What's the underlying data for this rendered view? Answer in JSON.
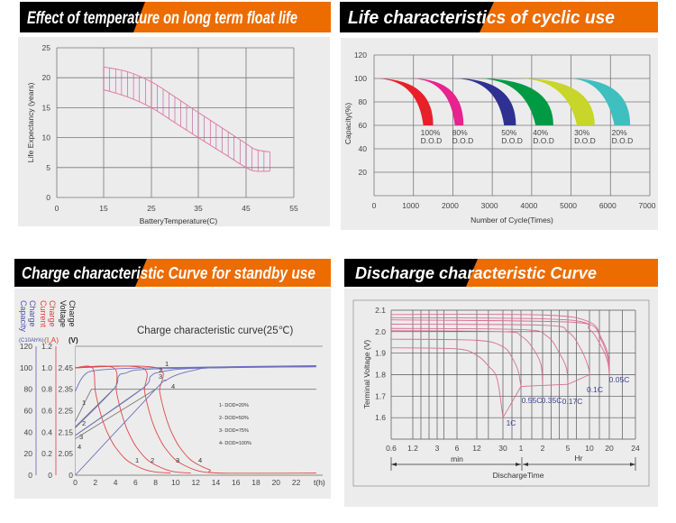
{
  "chart_data": [
    {
      "type": "area",
      "title": "Effect of temperature on long term float life",
      "xlabel": "BatteryTemperature(C)",
      "ylabel": "Life Expectancy (years)",
      "x_ticks": [
        0,
        15,
        25,
        35,
        45,
        55
      ],
      "y_ticks": [
        0,
        5,
        10,
        15,
        20,
        25
      ],
      "ylim": [
        0,
        25
      ],
      "grid": true,
      "color": "#e07ca0",
      "hatch_color": "#c0509a",
      "band": {
        "upper": [
          [
            15,
            21.8
          ],
          [
            20,
            21.0
          ],
          [
            25,
            19.3
          ],
          [
            30,
            16.8
          ],
          [
            35,
            14.2
          ],
          [
            40,
            11.6
          ],
          [
            45,
            9.0
          ],
          [
            47,
            8.0
          ],
          [
            50,
            7.6
          ]
        ],
        "lower": [
          [
            15,
            18.0
          ],
          [
            20,
            16.8
          ],
          [
            25,
            15.0
          ],
          [
            30,
            12.5
          ],
          [
            35,
            10.0
          ],
          [
            40,
            7.5
          ],
          [
            45,
            5.0
          ],
          [
            47,
            4.4
          ],
          [
            50,
            4.4
          ]
        ]
      }
    },
    {
      "type": "area",
      "title": "Life characteristics of cyclic use",
      "xlabel": "Number of Cycle(Times)",
      "ylabel": "Capacity(%)",
      "xlim": [
        0,
        7000
      ],
      "ylim": [
        0,
        120
      ],
      "x_ticks": [
        0,
        1000,
        2000,
        3000,
        4000,
        5000,
        6000,
        7000
      ],
      "y_ticks": [
        20,
        40,
        60,
        80,
        100,
        120
      ],
      "grid": true,
      "series": [
        {
          "name": "100% D.O.D",
          "label_top": "100%",
          "label_bottom": "D.O.D",
          "start": 0,
          "end_inner": 1250,
          "end_outer": 1500,
          "color": "#e8202a"
        },
        {
          "name": "80% D.O.D",
          "label_top": "80%",
          "label_bottom": "D.O.D",
          "start": 900,
          "end_inner": 2050,
          "end_outer": 2270,
          "color": "#e6238e"
        },
        {
          "name": "50% D.O.D",
          "label_top": "50%",
          "label_bottom": "D.O.D",
          "start": 2000,
          "end_inner": 3300,
          "end_outer": 3600,
          "color": "#2e3192"
        },
        {
          "name": "40% D.O.D",
          "label_top": "40%",
          "label_bottom": "D.O.D",
          "start": 2600,
          "end_inner": 4100,
          "end_outer": 4550,
          "color": "#009a44"
        },
        {
          "name": "30% D.O.D",
          "label_top": "30%",
          "label_bottom": "D.O.D",
          "start": 3650,
          "end_inner": 5150,
          "end_outer": 5600,
          "color": "#c8d52a"
        },
        {
          "name": "20% D.O.D",
          "label_top": "20%",
          "label_bottom": "D.O.D",
          "start": 4900,
          "end_inner": 6100,
          "end_outer": 6500,
          "color": "#3fbfbf"
        }
      ]
    },
    {
      "type": "line",
      "title": "Charge characteristic Curve for standby use",
      "subtitle": "Charge characteristic curve(25℃)",
      "xlabel": "t(h)",
      "x_ticks": [
        0,
        2,
        4,
        6,
        8,
        10,
        12,
        14,
        16,
        18,
        20,
        22
      ],
      "axes": {
        "capacity": {
          "title": [
            "Charge",
            "Capacity"
          ],
          "unit": "(C10Ah%)",
          "ticks": [
            0,
            20,
            40,
            60,
            80,
            100,
            120
          ],
          "color": "#4a4fa8"
        },
        "current": {
          "title": [
            "Charge",
            "Current"
          ],
          "unit": "(I,A)",
          "ticks": [
            "0",
            "0.2",
            "0.4",
            "0.6",
            "0.8",
            "1.0",
            "1.2"
          ],
          "color": "#e03a3a"
        },
        "voltage": {
          "title": [
            "Charge",
            "Voltage"
          ],
          "unit": "(V)",
          "ticks": [
            "0",
            "2.05",
            "2.15",
            "2.25",
            "2.35",
            "2.45"
          ],
          "color": "#222222"
        }
      },
      "legend": [
        "1- DOD=20%",
        "2- DOD=50%",
        "3- DOD=75%",
        "4- DOD=100%"
      ],
      "voltage_series": [
        {
          "label": "1",
          "points": [
            [
              0,
              2.2
            ],
            [
              1.6,
              2.35
            ],
            [
              24,
              2.35
            ]
          ]
        },
        {
          "label": "2",
          "points": [
            [
              0,
              2.175
            ],
            [
              3.8,
              2.35
            ]
          ]
        },
        {
          "label": "3",
          "points": [
            [
              0,
              2.135
            ],
            [
              6.6,
              2.35
            ]
          ]
        },
        {
          "label": "4",
          "points": [
            [
              0,
              2.12
            ],
            [
              8.0,
              2.35
            ]
          ]
        }
      ],
      "current_series": [
        {
          "label": "1",
          "points": [
            [
              0,
              1.0
            ],
            [
              1.7,
              1.0
            ],
            [
              2.0,
              0.78
            ],
            [
              2.5,
              0.58
            ],
            [
              3,
              0.44
            ],
            [
              3.5,
              0.34
            ],
            [
              4,
              0.26
            ],
            [
              5,
              0.15
            ],
            [
              6,
              0.09
            ],
            [
              7,
              0.05
            ],
            [
              8,
              0.03
            ],
            [
              9.5,
              0.02
            ]
          ]
        },
        {
          "label": "2",
          "points": [
            [
              0,
              1.0
            ],
            [
              3.8,
              1.0
            ],
            [
              4.1,
              0.78
            ],
            [
              4.6,
              0.58
            ],
            [
              5.1,
              0.44
            ],
            [
              5.6,
              0.34
            ],
            [
              6.1,
              0.26
            ],
            [
              7.1,
              0.15
            ],
            [
              8.1,
              0.09
            ],
            [
              9.1,
              0.05
            ],
            [
              10,
              0.03
            ],
            [
              11.5,
              0.02
            ]
          ]
        },
        {
          "label": "3",
          "points": [
            [
              0,
              1.0
            ],
            [
              6.6,
              1.0
            ],
            [
              6.9,
              0.78
            ],
            [
              7.4,
              0.58
            ],
            [
              7.9,
              0.44
            ],
            [
              8.4,
              0.34
            ],
            [
              8.9,
              0.26
            ],
            [
              9.9,
              0.15
            ],
            [
              10.9,
              0.09
            ],
            [
              11.9,
              0.05
            ],
            [
              12.8,
              0.03
            ],
            [
              14.3,
              0.02
            ]
          ]
        },
        {
          "label": "4",
          "points": [
            [
              0,
              1.0
            ],
            [
              8.1,
              1.0
            ],
            [
              8.4,
              0.78
            ],
            [
              8.9,
              0.58
            ],
            [
              9.4,
              0.44
            ],
            [
              9.9,
              0.34
            ],
            [
              10.4,
              0.26
            ],
            [
              11.4,
              0.15
            ],
            [
              12.4,
              0.09
            ],
            [
              13.4,
              0.05
            ],
            [
              14.3,
              0.02
            ],
            [
              24,
              0.02
            ]
          ]
        }
      ],
      "capacity_series": [
        {
          "label": "1",
          "points": [
            [
              0,
              78
            ],
            [
              0.5,
              88
            ],
            [
              1,
              94
            ],
            [
              1.7,
              97
            ],
            [
              4,
              99
            ],
            [
              8,
              100
            ],
            [
              24,
              102
            ]
          ]
        },
        {
          "label": "2",
          "points": [
            [
              0,
              44
            ],
            [
              3.8,
              80
            ],
            [
              4.3,
              92
            ],
            [
              5,
              95
            ],
            [
              8,
              99
            ],
            [
              24,
              101.5
            ]
          ]
        },
        {
          "label": "3",
          "points": [
            [
              0,
              37
            ],
            [
              6.6,
              80
            ],
            [
              7.5,
              92
            ],
            [
              8.5,
              96
            ],
            [
              12,
              99.5
            ],
            [
              24,
              101
            ]
          ]
        },
        {
          "label": "4",
          "points": [
            [
              0,
              0
            ],
            [
              8,
              80
            ],
            [
              9,
              88
            ],
            [
              10,
              93
            ],
            [
              12,
              98
            ],
            [
              14,
              100
            ],
            [
              24,
              101
            ]
          ]
        }
      ]
    },
    {
      "type": "line",
      "title": "Discharge characteristic Curve",
      "xlabel": "DischargeTime",
      "ylabel": "Terminal Voltage  (V)",
      "x_unit_groups": [
        "min",
        "Hr"
      ],
      "x_tick_labels": [
        "0.6",
        "1.2",
        "3",
        "6",
        "12",
        "30",
        "1",
        "2",
        "5",
        "10",
        "20",
        "24"
      ],
      "x_tick_values_min": [
        0.6,
        1.2,
        3,
        6,
        12,
        30,
        60,
        120,
        300,
        600,
        1200,
        1440
      ],
      "y_ticks": [
        "1.6",
        "1.7",
        "1.8",
        "1.9",
        "2.0",
        "2.1"
      ],
      "ylim": [
        1.5,
        2.1
      ],
      "grid": true,
      "curve_color": "#d66f92",
      "label_color": "#3a3f9a",
      "series": [
        {
          "name": "1C",
          "points": [
            [
              0.6,
              1.925
            ],
            [
              6,
              1.92
            ],
            [
              12,
              1.89
            ],
            [
              20,
              1.84
            ],
            [
              26,
              1.78
            ],
            [
              30,
              1.6
            ]
          ]
        },
        {
          "name": "0.55C",
          "points": [
            [
              0.6,
              1.965
            ],
            [
              12,
              1.96
            ],
            [
              30,
              1.93
            ],
            [
              45,
              1.88
            ],
            [
              55,
              1.82
            ],
            [
              60,
              1.745
            ]
          ]
        },
        {
          "name": "0.35C",
          "points": [
            [
              0.6,
              2.005
            ],
            [
              30,
              2.0
            ],
            [
              60,
              1.98
            ],
            [
              90,
              1.93
            ],
            [
              115,
              1.85
            ],
            [
              120,
              1.75
            ]
          ]
        },
        {
          "name": "0.17C",
          "points": [
            [
              0.6,
              2.015
            ],
            [
              60,
              2.01
            ],
            [
              150,
              1.98
            ],
            [
              240,
              1.9
            ],
            [
              290,
              1.83
            ],
            [
              300,
              1.755
            ]
          ]
        },
        {
          "name": "0.1C",
          "points": [
            [
              0.6,
              2.035
            ],
            [
              120,
              2.03
            ],
            [
              300,
              2.0
            ],
            [
              480,
              1.92
            ],
            [
              580,
              1.84
            ],
            [
              600,
              1.8
            ]
          ]
        },
        {
          "name": "0.05C",
          "points": [
            [
              0.6,
              2.055
            ],
            [
              300,
              2.045
            ],
            [
              600,
              2.01
            ],
            [
              960,
              1.93
            ],
            [
              1150,
              1.86
            ],
            [
              1200,
              1.8
            ]
          ]
        },
        {
          "name": "",
          "points": [
            [
              0.6,
              2.065
            ],
            [
              120,
              2.06
            ],
            [
              600,
              2.035
            ],
            [
              960,
              1.96
            ],
            [
              1150,
              1.88
            ],
            [
              1200,
              1.82
            ]
          ]
        },
        {
          "name": "",
          "points": [
            [
              0.6,
              2.08
            ],
            [
              120,
              2.078
            ],
            [
              600,
              2.045
            ],
            [
              960,
              1.97
            ],
            [
              1150,
              1.9
            ],
            [
              1200,
              1.84
            ]
          ]
        }
      ],
      "end_voltage_line": [
        [
          30,
          1.6
        ],
        [
          60,
          1.745
        ],
        [
          120,
          1.75
        ],
        [
          300,
          1.755
        ],
        [
          600,
          1.8
        ]
      ]
    }
  ]
}
